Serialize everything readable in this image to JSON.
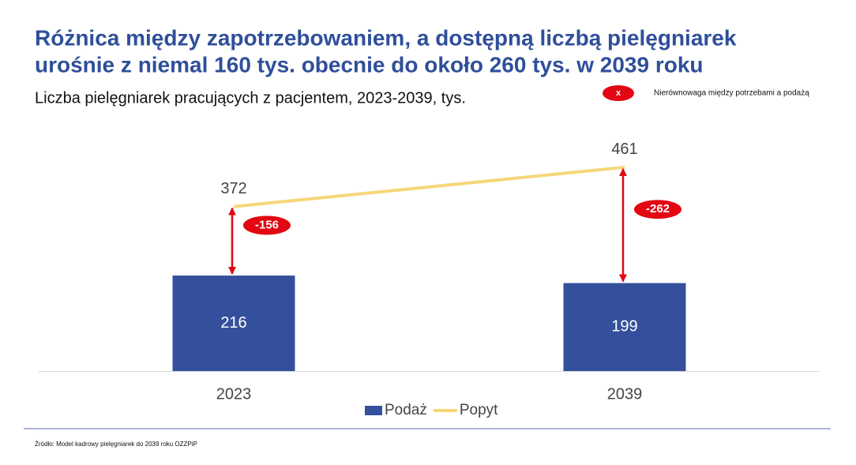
{
  "chart_data": {
    "type": "bar-line",
    "title": [
      "Różnica między zapotrzebowaniem, a dostępną liczbą pielęgniarek",
      "urośnie z niemal 160 tys. obecnie do około 260 tys. w 2039 roku"
    ],
    "subtitle": "Liczba pielęgniarek pracujących z pacjentem, 2023-2039, tys.",
    "categories": [
      "2023",
      "2039"
    ],
    "series": [
      {
        "name": "Podaż",
        "type": "bar",
        "color": "#34509c",
        "values": [
          216,
          199
        ]
      },
      {
        "name": "Popyt",
        "type": "line",
        "color": "#f5d77a",
        "values": [
          372,
          461
        ]
      }
    ],
    "gaps": [
      -156,
      -262
    ],
    "gap_color": "#e30613",
    "gap_legend": {
      "symbol": "x",
      "label": "Nierównowaga między potrzebami a podażą"
    },
    "source": "Źródło: Model kadrowy pielęgniarek do 2039 roku OZZPiP"
  }
}
